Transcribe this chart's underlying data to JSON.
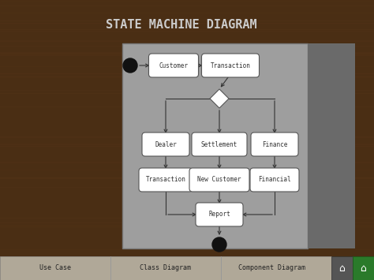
{
  "title": "STATE MACHINE DIAGRAM",
  "bg_color": "#4a2e14",
  "diagram_bg": "#9e9e9e",
  "diagram_border": "#888888",
  "right_panel_color": "#707070",
  "node_bg": "#ffffff",
  "node_border": "#555555",
  "arrow_color": "#333333",
  "title_color": "#cccccc",
  "text_color": "#333333",
  "footer_bg": "#b8b0a0",
  "footer_text_color": "#222222",
  "footer_items": [
    "Use Case",
    "Class Diagram",
    "Component Diagram"
  ]
}
